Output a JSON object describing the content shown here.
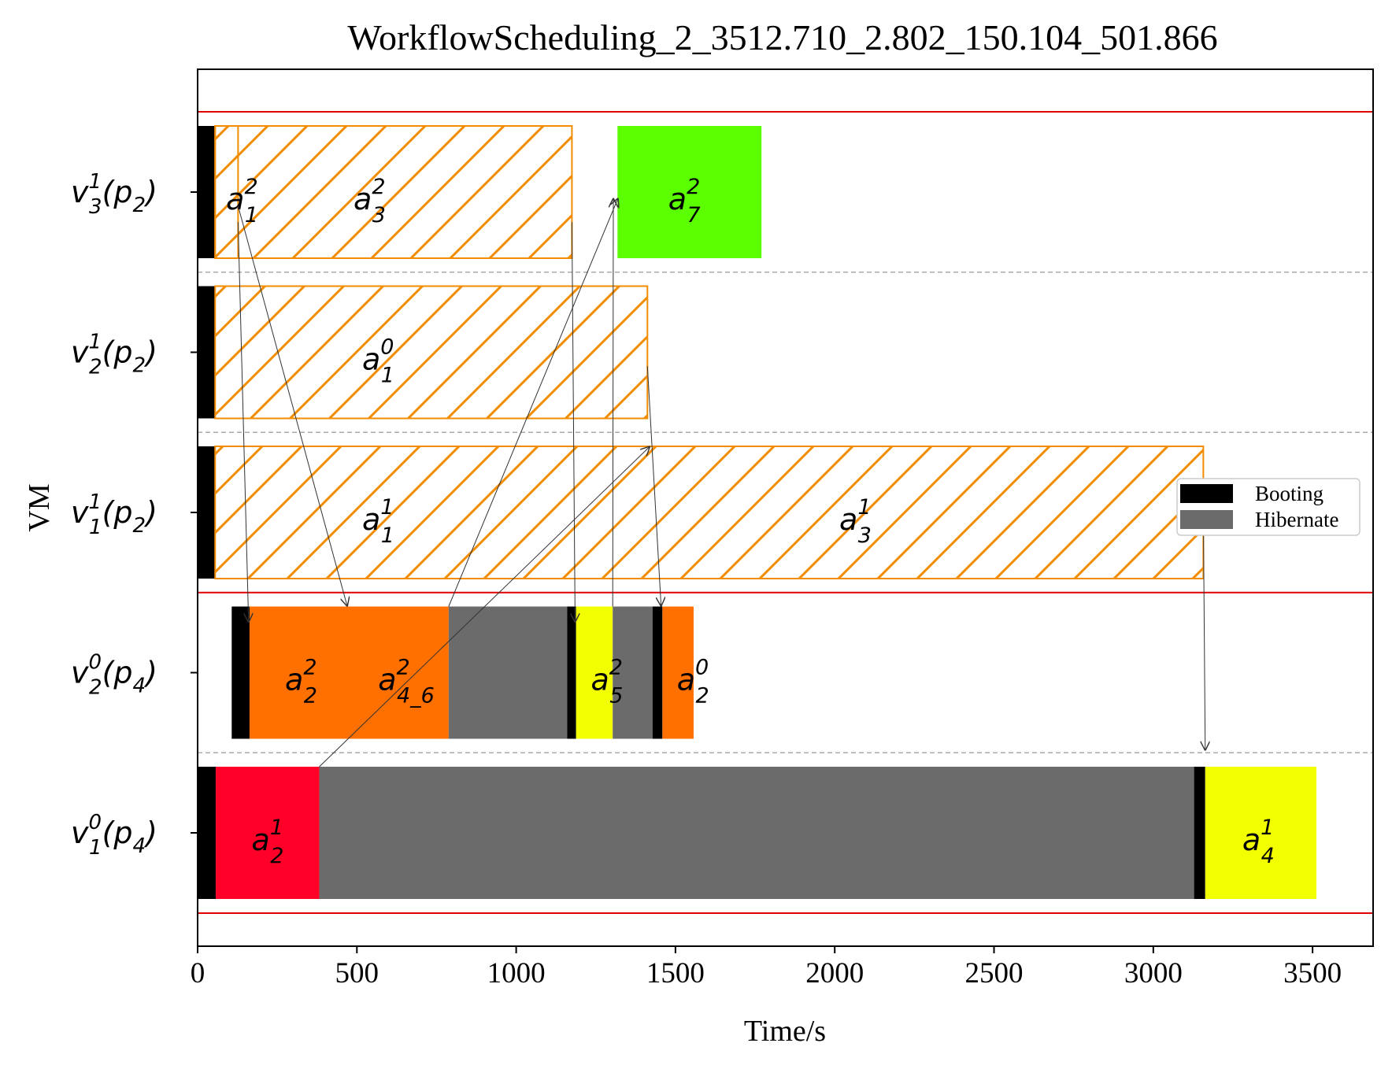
{
  "chart_data": {
    "type": "gantt",
    "title": "WorkflowScheduling_2_3512.710_2.802_150.104_501.866",
    "xlabel": "Time/s",
    "ylabel": "VM",
    "xlim": [
      0,
      3690
    ],
    "xticks": [
      "0",
      "500",
      "1000",
      "1500",
      "2000",
      "2500",
      "3000",
      "3500"
    ],
    "xtick_values": [
      0,
      500,
      1000,
      1500,
      2000,
      2500,
      3000,
      3500
    ],
    "rows": [
      {
        "id": "v3p2",
        "base": "v",
        "sub": "3",
        "sup": "1",
        "p": "2"
      },
      {
        "id": "v2p2",
        "base": "v",
        "sub": "2",
        "sup": "1",
        "p": "2"
      },
      {
        "id": "v1p2",
        "base": "v",
        "sub": "1",
        "sup": "1",
        "p": "2"
      },
      {
        "id": "v2p4",
        "base": "v",
        "sub": "2",
        "sup": "0",
        "p": "4"
      },
      {
        "id": "v1p4",
        "base": "v",
        "sub": "1",
        "sup": "0",
        "p": "4"
      }
    ],
    "colors": {
      "booting": "#000000",
      "hibernate": "#6b6b6b",
      "orange": "#ff7000",
      "red": "#ff0028",
      "yellow": "#f2ff00",
      "green": "#5cff00",
      "hatch": "#f28c00",
      "separator": "#e00000"
    },
    "legend": {
      "position": "center-right",
      "entries": [
        {
          "label": "Booting",
          "color": "#000000"
        },
        {
          "label": "Hibernate",
          "color": "#6b6b6b"
        }
      ]
    },
    "red_separators_after_rows": [
      -1,
      2,
      4
    ],
    "segments": [
      {
        "row": 0,
        "start": 0,
        "end": 55,
        "kind": "booting"
      },
      {
        "row": 0,
        "start": 55,
        "end": 1175,
        "kind": "hatch"
      },
      {
        "row": 0,
        "start": 55,
        "end": 127,
        "kind": "hatch-outline"
      },
      {
        "row": 0,
        "start": 1318,
        "end": 1770,
        "kind": "task",
        "color": "#5cff00"
      },
      {
        "row": 1,
        "start": 0,
        "end": 55,
        "kind": "booting"
      },
      {
        "row": 1,
        "start": 55,
        "end": 1412,
        "kind": "hatch"
      },
      {
        "row": 2,
        "start": 0,
        "end": 55,
        "kind": "booting"
      },
      {
        "row": 2,
        "start": 55,
        "end": 3157,
        "kind": "hatch"
      },
      {
        "row": 3,
        "start": 107,
        "end": 163,
        "kind": "booting"
      },
      {
        "row": 3,
        "start": 163,
        "end": 477,
        "kind": "task",
        "color": "#ff7000"
      },
      {
        "row": 3,
        "start": 477,
        "end": 788,
        "kind": "task",
        "color": "#ff7000"
      },
      {
        "row": 3,
        "start": 788,
        "end": 1160,
        "kind": "hibernate"
      },
      {
        "row": 3,
        "start": 1160,
        "end": 1188,
        "kind": "booting"
      },
      {
        "row": 3,
        "start": 1188,
        "end": 1303,
        "kind": "task",
        "color": "#f2ff00"
      },
      {
        "row": 3,
        "start": 1303,
        "end": 1428,
        "kind": "hibernate"
      },
      {
        "row": 3,
        "start": 1428,
        "end": 1459,
        "kind": "booting"
      },
      {
        "row": 3,
        "start": 1459,
        "end": 1557,
        "kind": "task",
        "color": "#ff7000"
      },
      {
        "row": 4,
        "start": 0,
        "end": 57,
        "kind": "booting"
      },
      {
        "row": 4,
        "start": 57,
        "end": 382,
        "kind": "task",
        "color": "#ff0028"
      },
      {
        "row": 4,
        "start": 382,
        "end": 3128,
        "kind": "hibernate"
      },
      {
        "row": 4,
        "start": 3128,
        "end": 3163,
        "kind": "booting"
      },
      {
        "row": 4,
        "start": 3163,
        "end": 3512,
        "kind": "task",
        "color": "#f2ff00"
      }
    ],
    "task_labels": [
      {
        "row": 0,
        "x": 140,
        "base": "a",
        "sup": "2",
        "sub": "1"
      },
      {
        "row": 0,
        "x": 540,
        "base": "a",
        "sup": "2",
        "sub": "3"
      },
      {
        "row": 0,
        "x": 1528,
        "base": "a",
        "sup": "2",
        "sub": "7"
      },
      {
        "row": 1,
        "x": 567,
        "base": "a",
        "sup": "0",
        "sub": "1"
      },
      {
        "row": 2,
        "x": 567,
        "base": "a",
        "sup": "1",
        "sub": "1"
      },
      {
        "row": 2,
        "x": 2065,
        "base": "a",
        "sup": "1",
        "sub": "3"
      },
      {
        "row": 3,
        "x": 325,
        "base": "a",
        "sup": "2",
        "sub": "2"
      },
      {
        "row": 3,
        "x": 655,
        "base": "a",
        "sup": "2",
        "sub": "4_6"
      },
      {
        "row": 3,
        "x": 1285,
        "base": "a",
        "sup": "2",
        "sub": "5"
      },
      {
        "row": 3,
        "x": 1555,
        "base": "a",
        "sup": "0",
        "sub": "2"
      },
      {
        "row": 4,
        "x": 220,
        "base": "a",
        "sup": "1",
        "sub": "2"
      },
      {
        "row": 4,
        "x": 3330,
        "base": "a",
        "sup": "1",
        "sub": "4"
      }
    ],
    "dependencies": [
      {
        "from": [
          127,
          0.6
        ],
        "to": [
          160,
          3.1
        ]
      },
      {
        "from": [
          127,
          0.5
        ],
        "to": [
          470,
          3.0
        ]
      },
      {
        "from": [
          788,
          3.0
        ],
        "to": [
          1320,
          0.45
        ]
      },
      {
        "from": [
          1175,
          0.6
        ],
        "to": [
          1185,
          3.1
        ]
      },
      {
        "from": [
          1303,
          3.0
        ],
        "to": [
          1305,
          0.45
        ]
      },
      {
        "from": [
          1412,
          1.5
        ],
        "to": [
          1455,
          3.0
        ]
      },
      {
        "from": [
          382,
          4.0
        ],
        "to": [
          1420,
          2.0
        ]
      },
      {
        "from": [
          3157,
          2.4
        ],
        "to": [
          3163,
          3.9
        ]
      }
    ]
  }
}
